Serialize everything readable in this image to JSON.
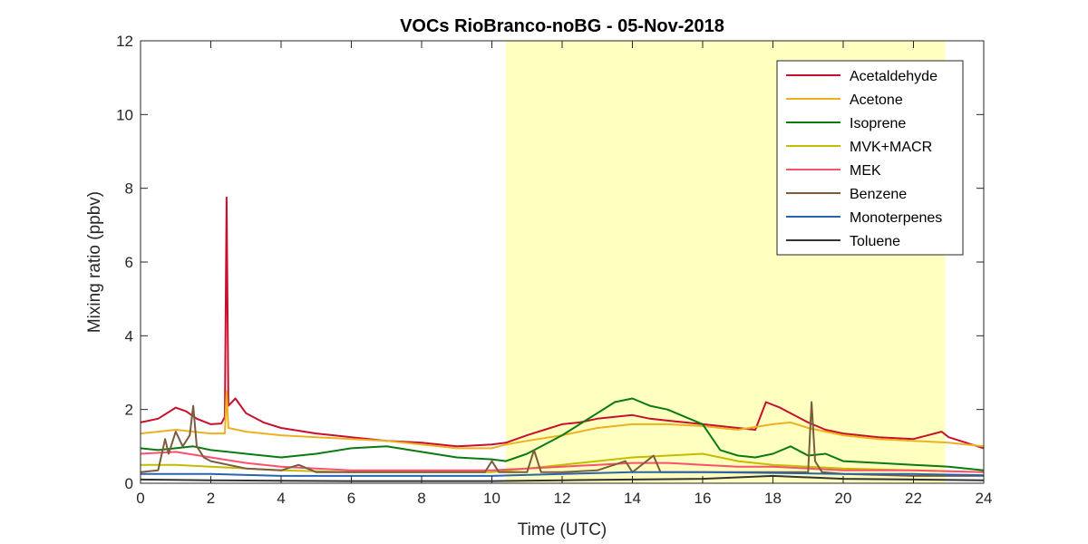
{
  "chart_data": {
    "type": "line",
    "title": "VOCs RioBranco-noBG - 05-Nov-2018",
    "xlabel": "Time (UTC)",
    "ylabel": "Mixing ratio (ppbv)",
    "xlim": [
      0,
      24
    ],
    "ylim": [
      0,
      12
    ],
    "xticks": [
      "0",
      "2",
      "4",
      "6",
      "8",
      "10",
      "12",
      "14",
      "16",
      "18",
      "20",
      "22",
      "24"
    ],
    "yticks": [
      "0",
      "2",
      "4",
      "6",
      "8",
      "10",
      "12"
    ],
    "grid": false,
    "legend_position": "top-right",
    "shaded_region": {
      "x_start": 10.4,
      "x_end": 22.9,
      "color": "#ffffbf"
    },
    "series": [
      {
        "name": "Acetaldehyde",
        "color": "#c8102e",
        "points": [
          [
            0,
            1.65
          ],
          [
            0.5,
            1.75
          ],
          [
            1,
            2.05
          ],
          [
            1.3,
            1.95
          ],
          [
            1.6,
            1.75
          ],
          [
            2,
            1.6
          ],
          [
            2.3,
            1.62
          ],
          [
            2.4,
            1.8
          ],
          [
            2.45,
            7.75
          ],
          [
            2.5,
            2.1
          ],
          [
            2.7,
            2.3
          ],
          [
            3,
            1.9
          ],
          [
            3.5,
            1.65
          ],
          [
            4,
            1.5
          ],
          [
            5,
            1.35
          ],
          [
            6,
            1.25
          ],
          [
            7,
            1.15
          ],
          [
            8,
            1.1
          ],
          [
            9,
            1.0
          ],
          [
            10,
            1.05
          ],
          [
            10.4,
            1.1
          ],
          [
            11,
            1.3
          ],
          [
            11.5,
            1.45
          ],
          [
            12,
            1.6
          ],
          [
            12.5,
            1.65
          ],
          [
            13,
            1.75
          ],
          [
            13.5,
            1.8
          ],
          [
            14,
            1.85
          ],
          [
            14.5,
            1.75
          ],
          [
            15,
            1.7
          ],
          [
            16,
            1.6
          ],
          [
            17,
            1.5
          ],
          [
            17.5,
            1.45
          ],
          [
            17.8,
            2.2
          ],
          [
            18.2,
            2.05
          ],
          [
            18.5,
            1.9
          ],
          [
            19,
            1.65
          ],
          [
            19.5,
            1.45
          ],
          [
            20,
            1.35
          ],
          [
            21,
            1.25
          ],
          [
            22,
            1.2
          ],
          [
            22.8,
            1.4
          ],
          [
            23,
            1.25
          ],
          [
            23.5,
            1.1
          ],
          [
            24,
            0.95
          ]
        ]
      },
      {
        "name": "Acetone",
        "color": "#edb120",
        "points": [
          [
            0,
            1.35
          ],
          [
            0.5,
            1.4
          ],
          [
            1,
            1.45
          ],
          [
            1.5,
            1.4
          ],
          [
            2,
            1.35
          ],
          [
            2.4,
            1.35
          ],
          [
            2.45,
            2.5
          ],
          [
            2.5,
            1.5
          ],
          [
            3,
            1.4
          ],
          [
            4,
            1.3
          ],
          [
            5,
            1.25
          ],
          [
            6,
            1.2
          ],
          [
            7,
            1.15
          ],
          [
            8,
            1.05
          ],
          [
            9,
            0.95
          ],
          [
            10,
            0.95
          ],
          [
            10.4,
            1.05
          ],
          [
            11,
            1.15
          ],
          [
            12,
            1.3
          ],
          [
            13,
            1.5
          ],
          [
            14,
            1.6
          ],
          [
            15,
            1.6
          ],
          [
            16,
            1.55
          ],
          [
            17,
            1.45
          ],
          [
            18,
            1.6
          ],
          [
            18.5,
            1.65
          ],
          [
            19,
            1.5
          ],
          [
            20,
            1.3
          ],
          [
            21,
            1.2
          ],
          [
            22,
            1.15
          ],
          [
            23,
            1.1
          ],
          [
            24,
            1.0
          ]
        ]
      },
      {
        "name": "Isoprene",
        "color": "#0b7a10",
        "points": [
          [
            0,
            0.95
          ],
          [
            0.5,
            0.9
          ],
          [
            1,
            0.95
          ],
          [
            1.5,
            1.0
          ],
          [
            2,
            0.9
          ],
          [
            2.5,
            0.85
          ],
          [
            3,
            0.8
          ],
          [
            3.5,
            0.75
          ],
          [
            4,
            0.7
          ],
          [
            5,
            0.8
          ],
          [
            6,
            0.95
          ],
          [
            7,
            1.0
          ],
          [
            8,
            0.85
          ],
          [
            9,
            0.7
          ],
          [
            10,
            0.65
          ],
          [
            10.4,
            0.6
          ],
          [
            11,
            0.8
          ],
          [
            12,
            1.3
          ],
          [
            12.5,
            1.6
          ],
          [
            13,
            1.9
          ],
          [
            13.5,
            2.2
          ],
          [
            14,
            2.3
          ],
          [
            14.5,
            2.1
          ],
          [
            15,
            2.0
          ],
          [
            15.5,
            1.8
          ],
          [
            16,
            1.6
          ],
          [
            16.5,
            0.9
          ],
          [
            17,
            0.75
          ],
          [
            17.5,
            0.7
          ],
          [
            18,
            0.8
          ],
          [
            18.5,
            1.0
          ],
          [
            19,
            0.75
          ],
          [
            19.5,
            0.8
          ],
          [
            20,
            0.6
          ],
          [
            21,
            0.55
          ],
          [
            22,
            0.5
          ],
          [
            23,
            0.45
          ],
          [
            24,
            0.35
          ]
        ]
      },
      {
        "name": "MVK+MACR",
        "color": "#bfbf00",
        "points": [
          [
            0,
            0.5
          ],
          [
            1,
            0.5
          ],
          [
            2,
            0.45
          ],
          [
            3,
            0.4
          ],
          [
            4,
            0.35
          ],
          [
            6,
            0.3
          ],
          [
            8,
            0.3
          ],
          [
            10,
            0.3
          ],
          [
            11,
            0.4
          ],
          [
            12,
            0.5
          ],
          [
            13,
            0.6
          ],
          [
            14,
            0.7
          ],
          [
            15,
            0.75
          ],
          [
            16,
            0.8
          ],
          [
            16.5,
            0.7
          ],
          [
            17,
            0.6
          ],
          [
            18,
            0.5
          ],
          [
            19,
            0.45
          ],
          [
            20,
            0.4
          ],
          [
            22,
            0.35
          ],
          [
            24,
            0.3
          ]
        ]
      },
      {
        "name": "MEK",
        "color": "#ff4f6e",
        "points": [
          [
            0,
            0.8
          ],
          [
            1,
            0.85
          ],
          [
            2,
            0.7
          ],
          [
            3,
            0.55
          ],
          [
            4,
            0.45
          ],
          [
            5,
            0.4
          ],
          [
            6,
            0.35
          ],
          [
            8,
            0.35
          ],
          [
            10,
            0.35
          ],
          [
            11,
            0.4
          ],
          [
            12,
            0.45
          ],
          [
            13,
            0.5
          ],
          [
            14,
            0.55
          ],
          [
            15,
            0.55
          ],
          [
            16,
            0.5
          ],
          [
            17,
            0.45
          ],
          [
            18,
            0.45
          ],
          [
            19,
            0.4
          ],
          [
            20,
            0.35
          ],
          [
            22,
            0.35
          ],
          [
            24,
            0.3
          ]
        ]
      },
      {
        "name": "Benzene",
        "color": "#7a5c3e",
        "points": [
          [
            0,
            0.3
          ],
          [
            0.5,
            0.35
          ],
          [
            0.7,
            1.2
          ],
          [
            0.8,
            0.8
          ],
          [
            1,
            1.4
          ],
          [
            1.2,
            1.0
          ],
          [
            1.4,
            1.3
          ],
          [
            1.5,
            2.1
          ],
          [
            1.6,
            1.0
          ],
          [
            1.8,
            0.7
          ],
          [
            2,
            0.6
          ],
          [
            2.5,
            0.5
          ],
          [
            3,
            0.4
          ],
          [
            4,
            0.35
          ],
          [
            4.5,
            0.5
          ],
          [
            5,
            0.3
          ],
          [
            6,
            0.3
          ],
          [
            8,
            0.3
          ],
          [
            9,
            0.3
          ],
          [
            9.8,
            0.3
          ],
          [
            10,
            0.6
          ],
          [
            10.2,
            0.3
          ],
          [
            11,
            0.3
          ],
          [
            11.2,
            0.9
          ],
          [
            11.4,
            0.3
          ],
          [
            12,
            0.3
          ],
          [
            13,
            0.35
          ],
          [
            13.8,
            0.6
          ],
          [
            14,
            0.3
          ],
          [
            14.6,
            0.75
          ],
          [
            14.8,
            0.3
          ],
          [
            16,
            0.3
          ],
          [
            17,
            0.3
          ],
          [
            18,
            0.3
          ],
          [
            19,
            0.3
          ],
          [
            19.1,
            2.2
          ],
          [
            19.2,
            0.6
          ],
          [
            19.4,
            0.3
          ],
          [
            20,
            0.25
          ],
          [
            22,
            0.2
          ],
          [
            24,
            0.2
          ]
        ]
      },
      {
        "name": "Monoterpenes",
        "color": "#2a64ab",
        "points": [
          [
            0,
            0.25
          ],
          [
            2,
            0.25
          ],
          [
            4,
            0.2
          ],
          [
            6,
            0.2
          ],
          [
            8,
            0.2
          ],
          [
            10,
            0.2
          ],
          [
            12,
            0.25
          ],
          [
            14,
            0.3
          ],
          [
            16,
            0.3
          ],
          [
            18,
            0.28
          ],
          [
            20,
            0.25
          ],
          [
            22,
            0.25
          ],
          [
            24,
            0.22
          ]
        ]
      },
      {
        "name": "Toluene",
        "color": "#333333",
        "points": [
          [
            0,
            0.1
          ],
          [
            2,
            0.08
          ],
          [
            4,
            0.07
          ],
          [
            6,
            0.06
          ],
          [
            8,
            0.06
          ],
          [
            10,
            0.06
          ],
          [
            12,
            0.08
          ],
          [
            14,
            0.1
          ],
          [
            16,
            0.12
          ],
          [
            18,
            0.2
          ],
          [
            20,
            0.12
          ],
          [
            22,
            0.1
          ],
          [
            24,
            0.08
          ]
        ]
      }
    ]
  }
}
